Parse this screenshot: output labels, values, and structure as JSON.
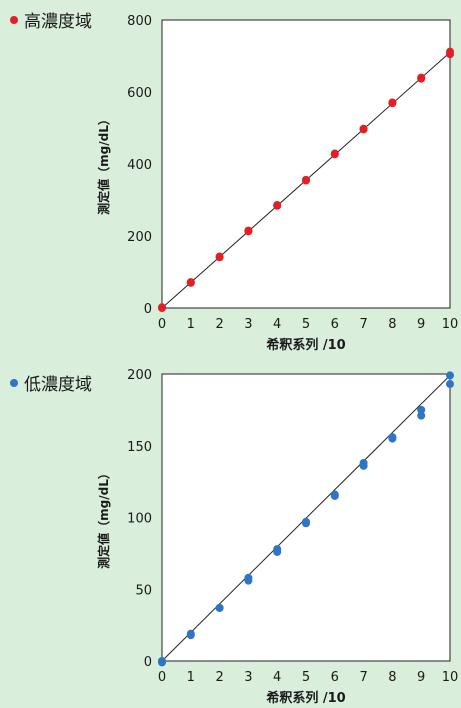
{
  "chart_data": [
    {
      "type": "scatter",
      "title": "高濃度域",
      "xlabel": "希釈系列 /10",
      "ylabel": "測定値（mg/dL）",
      "xlim": [
        0,
        10
      ],
      "ylim": [
        0,
        800
      ],
      "x_ticks": [
        "0",
        "1",
        "2",
        "3",
        "4",
        "5",
        "6",
        "7",
        "8",
        "9",
        "10"
      ],
      "y_ticks": [
        "0",
        "200",
        "400",
        "600",
        "800"
      ],
      "grid": false,
      "marker_color": "#e31f26",
      "points": [
        {
          "x": 0,
          "y": 0
        },
        {
          "x": 0,
          "y": 2
        },
        {
          "x": 1,
          "y": 70
        },
        {
          "x": 1,
          "y": 72
        },
        {
          "x": 2,
          "y": 141
        },
        {
          "x": 2,
          "y": 143
        },
        {
          "x": 3,
          "y": 213
        },
        {
          "x": 3,
          "y": 215
        },
        {
          "x": 4,
          "y": 284
        },
        {
          "x": 4,
          "y": 286
        },
        {
          "x": 5,
          "y": 354
        },
        {
          "x": 5,
          "y": 356
        },
        {
          "x": 6,
          "y": 427
        },
        {
          "x": 6,
          "y": 429
        },
        {
          "x": 7,
          "y": 496
        },
        {
          "x": 7,
          "y": 498
        },
        {
          "x": 8,
          "y": 569
        },
        {
          "x": 8,
          "y": 571
        },
        {
          "x": 9,
          "y": 637
        },
        {
          "x": 9,
          "y": 640
        },
        {
          "x": 10,
          "y": 705
        },
        {
          "x": 10,
          "y": 712
        }
      ],
      "reference_line": {
        "x": [
          0,
          10
        ],
        "y": [
          0,
          710
        ]
      }
    },
    {
      "type": "scatter",
      "title": "低濃度域",
      "xlabel": "希釈系列 /10",
      "ylabel": "測定値（mg/dL）",
      "xlim": [
        0,
        10
      ],
      "ylim": [
        0,
        200
      ],
      "x_ticks": [
        "0",
        "1",
        "2",
        "3",
        "4",
        "5",
        "6",
        "7",
        "8",
        "9",
        "10"
      ],
      "y_ticks": [
        "0",
        "50",
        "100",
        "150",
        "200"
      ],
      "grid": false,
      "marker_color": "#2e75c6",
      "points": [
        {
          "x": 0,
          "y": -1
        },
        {
          "x": 0,
          "y": 0
        },
        {
          "x": 1,
          "y": 18
        },
        {
          "x": 1,
          "y": 19
        },
        {
          "x": 2,
          "y": 37
        },
        {
          "x": 2,
          "y": 37
        },
        {
          "x": 3,
          "y": 56
        },
        {
          "x": 3,
          "y": 58
        },
        {
          "x": 4,
          "y": 76
        },
        {
          "x": 4,
          "y": 78
        },
        {
          "x": 5,
          "y": 96
        },
        {
          "x": 5,
          "y": 97
        },
        {
          "x": 6,
          "y": 115
        },
        {
          "x": 6,
          "y": 116
        },
        {
          "x": 7,
          "y": 136
        },
        {
          "x": 7,
          "y": 138
        },
        {
          "x": 8,
          "y": 155
        },
        {
          "x": 8,
          "y": 156
        },
        {
          "x": 9,
          "y": 171
        },
        {
          "x": 9,
          "y": 175
        },
        {
          "x": 10,
          "y": 193
        },
        {
          "x": 10,
          "y": 199
        }
      ],
      "reference_line": {
        "x": [
          0,
          10
        ],
        "y": [
          0,
          199
        ]
      }
    }
  ]
}
